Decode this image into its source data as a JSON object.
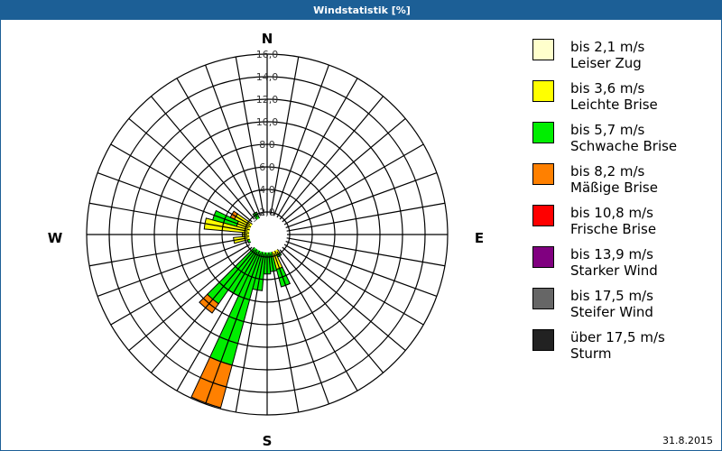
{
  "window": {
    "title": "Windstatistik [%]"
  },
  "date": "31.8.2015",
  "compass": {
    "n": "N",
    "e": "E",
    "s": "S",
    "w": "W"
  },
  "legend": [
    {
      "speed": "bis 2,1 m/s",
      "name": "Leiser Zug",
      "color": "#ffffcc"
    },
    {
      "speed": "bis 3,6 m/s",
      "name": "Leichte Brise",
      "color": "#ffff00"
    },
    {
      "speed": "bis 5,7 m/s",
      "name": "Schwache Brise",
      "color": "#00ee00"
    },
    {
      "speed": "bis 8,2 m/s",
      "name": "Mäßige Brise",
      "color": "#ff8000"
    },
    {
      "speed": "bis 10,8 m/s",
      "name": "Frische Brise",
      "color": "#ff0000"
    },
    {
      "speed": "bis 13,9 m/s",
      "name": "Starker Wind",
      "color": "#800080"
    },
    {
      "speed": "bis 17,5 m/s",
      "name": "Steifer Wind",
      "color": "#666666"
    },
    {
      "speed": "über 17,5 m/s",
      "name": "Sturm",
      "color": "#222222"
    }
  ],
  "chart_data": {
    "type": "polar-bar (wind rose)",
    "title": "Windstatistik [%]",
    "radial_ticks": [
      "2,0",
      "4,0",
      "6,0",
      "8,0",
      "10,0",
      "12,0",
      "14,0",
      "16,0"
    ],
    "rmax": 16,
    "sector_width_deg": 10,
    "series_names": [
      "bis 2,1 m/s",
      "bis 3,6 m/s",
      "bis 5,7 m/s",
      "bis 8,2 m/s",
      "bis 10,8 m/s",
      "bis 13,9 m/s",
      "bis 17,5 m/s",
      "über 17,5 m/s"
    ],
    "directions_deg": [
      0,
      10,
      20,
      30,
      40,
      50,
      60,
      70,
      80,
      90,
      100,
      110,
      120,
      130,
      140,
      150,
      160,
      170,
      180,
      190,
      200,
      210,
      220,
      230,
      240,
      250,
      260,
      270,
      280,
      290,
      300,
      310,
      320,
      330,
      340,
      350
    ],
    "cumulative_values": [
      [
        0.4,
        0.5,
        0.6,
        0.6
      ],
      [
        0.3,
        0.4,
        0.4,
        0.4
      ],
      [
        0.3,
        0.4,
        0.4,
        0.4
      ],
      [
        0.3,
        0.4,
        0.4,
        0.4
      ],
      [
        0.3,
        0.3,
        0.3,
        0.3
      ],
      [
        0.3,
        0.3,
        0.3,
        0.3
      ],
      [
        0.3,
        0.3,
        0.3,
        0.3
      ],
      [
        0.3,
        0.3,
        0.3,
        0.3
      ],
      [
        0.3,
        0.3,
        0.3,
        0.3
      ],
      [
        0.3,
        0.3,
        0.3,
        0.3
      ],
      [
        0.3,
        0.4,
        0.4,
        0.4
      ],
      [
        0.3,
        0.4,
        0.4,
        0.4
      ],
      [
        0.3,
        0.5,
        0.5,
        0.5
      ],
      [
        0.4,
        0.6,
        0.6,
        0.6
      ],
      [
        0.4,
        1.0,
        1.2,
        1.2
      ],
      [
        0.5,
        2.0,
        2.2,
        2.2
      ],
      [
        0.6,
        3.2,
        4.8,
        4.8
      ],
      [
        0.6,
        1.4,
        3.3,
        3.3
      ],
      [
        0.7,
        1.2,
        3.5,
        3.5
      ],
      [
        0.8,
        1.4,
        5.0,
        5.0
      ],
      [
        0.8,
        1.2,
        12.0,
        15.9
      ],
      [
        0.6,
        1.0,
        6.0,
        6.0
      ],
      [
        0.5,
        0.8,
        7.5,
        8.5
      ],
      [
        0.5,
        0.8,
        1.5,
        1.5
      ],
      [
        0.5,
        0.8,
        1.2,
        1.2
      ],
      [
        0.6,
        1.4,
        1.8,
        1.8
      ],
      [
        0.7,
        3.0,
        3.0,
        3.0
      ],
      [
        0.6,
        2.2,
        2.2,
        2.2
      ],
      [
        0.7,
        5.6,
        5.6,
        5.6
      ],
      [
        0.6,
        2.8,
        5.0,
        5.0
      ],
      [
        0.6,
        3.2,
        3.2,
        3.6
      ],
      [
        0.5,
        1.0,
        1.4,
        1.4
      ],
      [
        0.4,
        0.7,
        1.6,
        1.6
      ],
      [
        0.4,
        0.8,
        2.2,
        2.2
      ],
      [
        0.4,
        0.6,
        0.8,
        0.8
      ],
      [
        0.4,
        0.5,
        0.6,
        0.6
      ]
    ]
  }
}
